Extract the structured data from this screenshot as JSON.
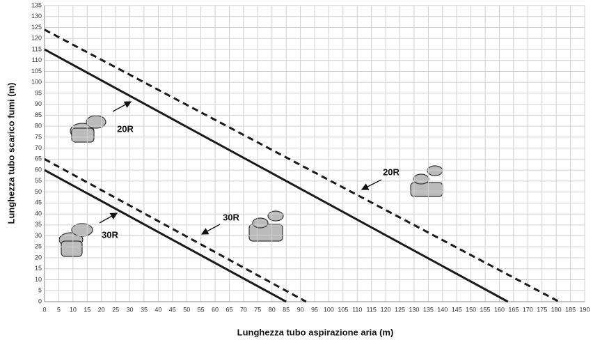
{
  "chart_data": {
    "type": "line",
    "x_label": "Lunghezza tubo aspirazione aria (m)",
    "y_label": "Lunghezza tubo scarico fumi (m)",
    "xlim": [
      0,
      190
    ],
    "ylim": [
      0,
      135
    ],
    "xticks": [
      0,
      5,
      10,
      15,
      20,
      25,
      30,
      35,
      40,
      45,
      50,
      55,
      60,
      65,
      70,
      75,
      80,
      85,
      90,
      95,
      100,
      105,
      110,
      115,
      120,
      125,
      130,
      135,
      140,
      145,
      150,
      155,
      160,
      165,
      170,
      175,
      180,
      185,
      190
    ],
    "yticks": [
      0,
      5,
      10,
      15,
      20,
      25,
      30,
      35,
      40,
      45,
      50,
      55,
      60,
      65,
      70,
      75,
      80,
      85,
      90,
      95,
      100,
      105,
      110,
      115,
      120,
      125,
      130,
      135
    ],
    "grid": true,
    "series": [
      {
        "name": "20R",
        "color": "#1a1a1a",
        "dashed": false,
        "x": [
          0,
          163
        ],
        "values": [
          115,
          0
        ]
      },
      {
        "name": "20R",
        "color": "#1a1a1a",
        "dashed": true,
        "x": [
          0,
          181
        ],
        "values": [
          124,
          0
        ]
      },
      {
        "name": "30R",
        "color": "#1a1a1a",
        "dashed": false,
        "x": [
          0,
          85
        ],
        "values": [
          60,
          0
        ]
      },
      {
        "name": "30R",
        "color": "#1a1a1a",
        "dashed": true,
        "x": [
          0,
          92
        ],
        "values": [
          65,
          0
        ]
      }
    ]
  }
}
